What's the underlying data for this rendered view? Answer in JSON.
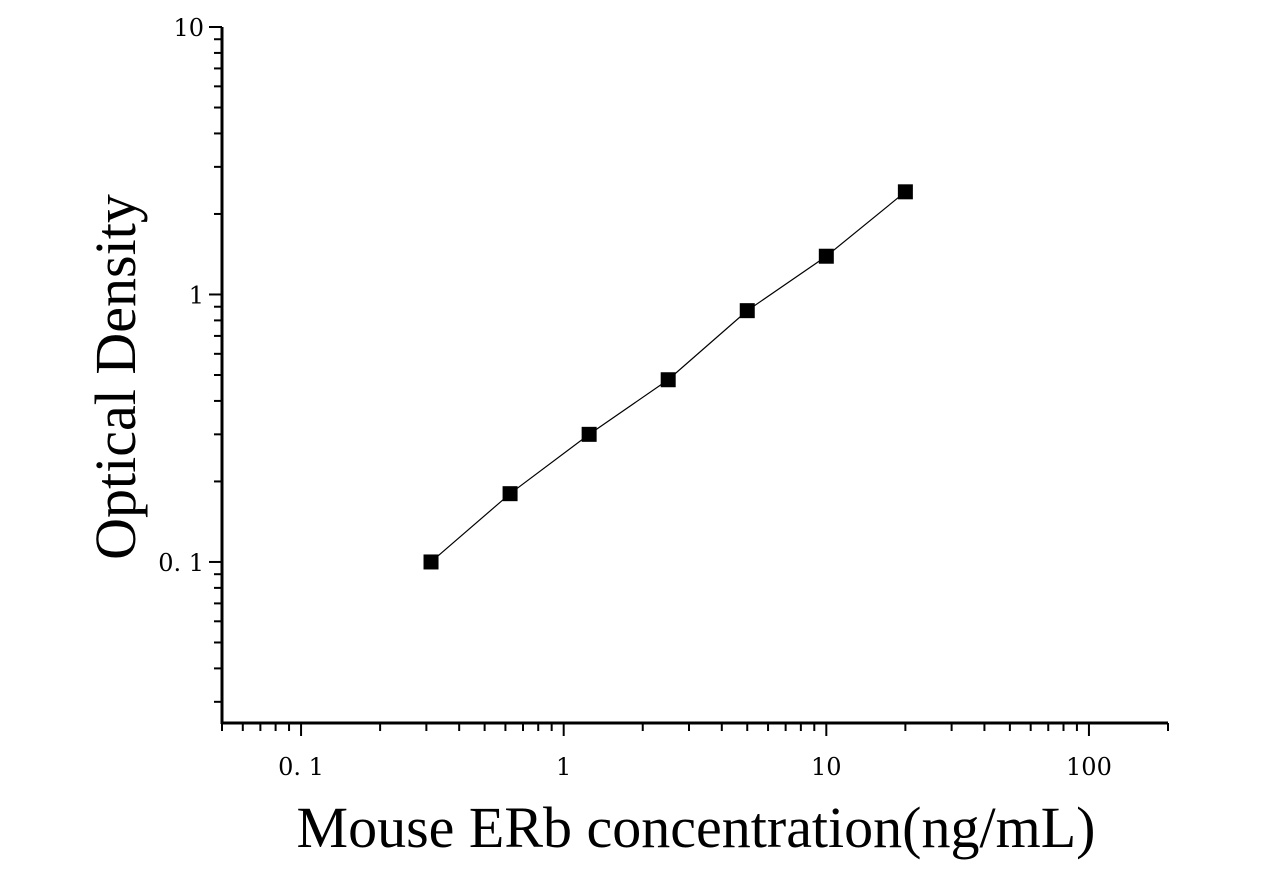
{
  "chart_data": {
    "type": "scatter",
    "xlabel": "Mouse ERb concentration(ng/mL)",
    "ylabel": "Optical Density",
    "x_scale": "log",
    "y_scale": "log",
    "xlim": [
      0.05,
      200
    ],
    "ylim": [
      0.025,
      10
    ],
    "x_ticks": [
      {
        "value": 0.1,
        "label": "0. 1"
      },
      {
        "value": 1,
        "label": "1"
      },
      {
        "value": 10,
        "label": "10"
      },
      {
        "value": 100,
        "label": "100"
      }
    ],
    "y_ticks": [
      {
        "value": 0.1,
        "label": "0. 1"
      },
      {
        "value": 1,
        "label": "1"
      },
      {
        "value": 10,
        "label": "10"
      }
    ],
    "grid": false,
    "fit_line": true,
    "series": [
      {
        "x": [
          0.3125,
          0.625,
          1.25,
          2.5,
          5,
          10,
          20
        ],
        "y": [
          0.1,
          0.18,
          0.3,
          0.48,
          0.87,
          1.39,
          2.42
        ]
      }
    ],
    "colors": {
      "marker": "#000000",
      "line": "#000000",
      "axis": "#000000"
    }
  }
}
